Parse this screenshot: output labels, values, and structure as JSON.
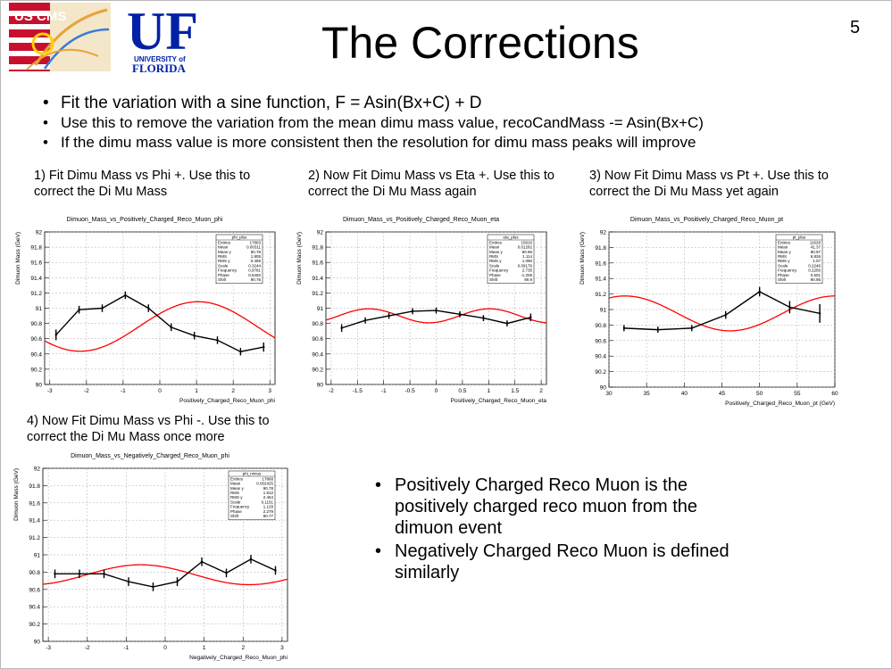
{
  "page_number": "5",
  "title": "The Corrections",
  "logos": {
    "cms_text": "US CMS",
    "uf_text": "UF",
    "uf_sub1": "UNIVERSITY of",
    "uf_sub2": "FLORIDA"
  },
  "bullets": [
    "Fit the variation with a sine function, F = Asin(Bx+C) + D",
    "Use this to remove the variation from the mean dimu mass value, recoCandMass -= Asin(Bx+C)",
    "If the dimu mass value is more consistent then the resolution for dimu mass peaks will improve"
  ],
  "captions": [
    "1) Fit Dimu Mass vs Phi +. Use this to correct the Di Mu Mass",
    "2) Now Fit Dimu Mass vs Eta +. Use this to correct the Di Mu Mass again",
    "3) Now Fit Dimu Mass vs Pt +. Use this to correct the Di Mu Mass yet again",
    "4) Now Fit Dimu Mass vs Phi -. Use this to correct the Di Mu Mass once more"
  ],
  "notes": [
    "Positively Charged Reco Muon is the positively charged reco muon from the dimuon event",
    "Negatively Charged Reco Muon is defined similarly"
  ],
  "colors": {
    "data": "#000000",
    "fit": "#ff0000",
    "grid": "#999999"
  },
  "chart_data": [
    {
      "type": "line",
      "title": "Dimuon_Mass_vs_Positively_Charged_Reco_Muon_phi",
      "xlabel": "Positively_Charged_Reco_Muon_phi",
      "ylabel": "Dimuon Mass (GeV)",
      "xlim": [
        -3.14,
        3.14
      ],
      "ylim": [
        90,
        92
      ],
      "xticks": [
        -3,
        -2,
        -1,
        0,
        1,
        2,
        3
      ],
      "yticks": [
        90,
        90.2,
        90.4,
        90.6,
        90.8,
        91,
        91.2,
        91.4,
        91.6,
        91.8,
        92
      ],
      "stats_title": "phi_plus",
      "stats": [
        [
          "Entries",
          "17863"
        ],
        [
          "Mean",
          "0.00311"
        ],
        [
          "Mean y",
          "90.78"
        ],
        [
          "RMS",
          "1.805"
        ],
        [
          "RMS y",
          "0.469"
        ],
        [
          "Scale",
          "0.3244"
        ],
        [
          "Frequency",
          "0.9781"
        ],
        [
          "Phase",
          "0.5492"
        ],
        [
          "Shift",
          "90.76"
        ]
      ],
      "x": [
        -2.83,
        -2.2,
        -1.57,
        -0.94,
        -0.31,
        0.31,
        0.94,
        1.57,
        2.2,
        2.83
      ],
      "y": [
        90.65,
        90.98,
        91.0,
        91.17,
        91.0,
        90.75,
        90.64,
        90.58,
        90.43,
        90.49
      ],
      "yerr": [
        0.07,
        0.05,
        0.05,
        0.05,
        0.05,
        0.05,
        0.05,
        0.05,
        0.05,
        0.06
      ],
      "fit": {
        "A": 0.3244,
        "B": 0.9781,
        "C": 0.5492,
        "D": 90.76
      }
    },
    {
      "type": "line",
      "title": "Dimuon_Mass_vs_Positively_Charged_Reco_Muon_eta",
      "xlabel": "Positively_Charged_Reco_Muon_eta",
      "ylabel": "Dimuon Mass (GeV)",
      "xlim": [
        -2.1,
        2.1
      ],
      "ylim": [
        90,
        92
      ],
      "xticks": [
        -2,
        -1.5,
        -1,
        -0.5,
        0,
        0.5,
        1,
        1.5,
        2
      ],
      "yticks": [
        90,
        90.2,
        90.4,
        90.6,
        90.8,
        91,
        91.2,
        91.4,
        91.6,
        91.8,
        92
      ],
      "stats_title": "eta_plus",
      "stats": [
        [
          "Entries",
          "15910"
        ],
        [
          "Mean",
          "0.01282"
        ],
        [
          "Mean y",
          "90.86"
        ],
        [
          "RMS",
          "1.114"
        ],
        [
          "RMS y",
          "1.090"
        ],
        [
          "Scale",
          "0.09176"
        ],
        [
          "Frequency",
          "2.735"
        ],
        [
          "Phase",
          "-1.206"
        ],
        [
          "Shift",
          "90.9"
        ]
      ],
      "x": [
        -1.8,
        -1.35,
        -0.9,
        -0.45,
        0.0,
        0.45,
        0.9,
        1.35,
        1.8
      ],
      "y": [
        90.74,
        90.84,
        90.9,
        90.96,
        90.97,
        90.92,
        90.87,
        90.8,
        90.88
      ],
      "yerr": [
        0.05,
        0.04,
        0.04,
        0.04,
        0.04,
        0.04,
        0.04,
        0.04,
        0.05
      ],
      "fit": {
        "A": 0.09176,
        "B": 2.735,
        "C": -1.206,
        "D": 90.9
      }
    },
    {
      "type": "line",
      "title": "Dimuon_Mass_vs_Positively_Charged_Reco_Muon_pt",
      "xlabel": "Positively_Charged_Reco_Muon_pt (GeV)",
      "ylabel": "Dimuon Mass (GeV)",
      "xlim": [
        30,
        60
      ],
      "ylim": [
        90,
        92
      ],
      "xticks": [
        30,
        35,
        40,
        45,
        50,
        55,
        60
      ],
      "yticks": [
        90,
        90.2,
        90.4,
        90.6,
        90.8,
        91,
        91.2,
        91.4,
        91.6,
        91.8,
        92
      ],
      "stats_title": "pt_plus",
      "stats": [
        [
          "Entries",
          "11628"
        ],
        [
          "Mean",
          "41.37"
        ],
        [
          "Mean y",
          "90.97"
        ],
        [
          "RMS",
          "6.826"
        ],
        [
          "RMS y",
          "1.07"
        ],
        [
          "Scale",
          "0.2246"
        ],
        [
          "Frequency",
          "0.2256"
        ],
        [
          "Phase",
          "0.601"
        ],
        [
          "Shift",
          "90.95"
        ]
      ],
      "x": [
        32,
        36.5,
        41,
        45.5,
        50,
        54,
        58
      ],
      "y": [
        90.76,
        90.74,
        90.76,
        90.93,
        91.23,
        91.03,
        90.95
      ],
      "yerr": [
        0.04,
        0.04,
        0.04,
        0.05,
        0.06,
        0.08,
        0.12
      ],
      "fit": {
        "A": 0.2246,
        "B": 0.2256,
        "C": 0.601,
        "D": 90.95
      }
    },
    {
      "type": "line",
      "title": "Dimuon_Mass_vs_Negatively_Charged_Reco_Muon_phi",
      "xlabel": "Negatively_Charged_Reco_Muon_phi",
      "ylabel": "Dimuon Mass (GeV)",
      "xlim": [
        -3.14,
        3.14
      ],
      "ylim": [
        90,
        92
      ],
      "xticks": [
        -3,
        -2,
        -1,
        0,
        1,
        2,
        3
      ],
      "yticks": [
        90,
        90.2,
        90.4,
        90.6,
        90.8,
        91,
        91.2,
        91.4,
        91.6,
        91.8,
        92
      ],
      "stats_title": "phi_minus",
      "stats": [
        [
          "Entries",
          "17868"
        ],
        [
          "Mean",
          "0.002425"
        ],
        [
          "Mean y",
          "90.78"
        ],
        [
          "RMS",
          "1.812"
        ],
        [
          "RMS y",
          "2.464"
        ],
        [
          "Scale",
          "0.1151"
        ],
        [
          "Frequency",
          "1.129"
        ],
        [
          "Phase",
          "2.279"
        ],
        [
          "Shift",
          "90.77"
        ]
      ],
      "x": [
        -2.83,
        -2.2,
        -1.57,
        -0.94,
        -0.31,
        0.31,
        0.94,
        1.57,
        2.2,
        2.83
      ],
      "y": [
        90.78,
        90.78,
        90.78,
        90.69,
        90.63,
        90.69,
        90.92,
        90.79,
        90.95,
        90.82
      ],
      "yerr": [
        0.05,
        0.05,
        0.05,
        0.05,
        0.05,
        0.05,
        0.05,
        0.05,
        0.05,
        0.05
      ],
      "fit": {
        "A": 0.1151,
        "B": 1.129,
        "C": 2.279,
        "D": 90.77
      }
    }
  ]
}
